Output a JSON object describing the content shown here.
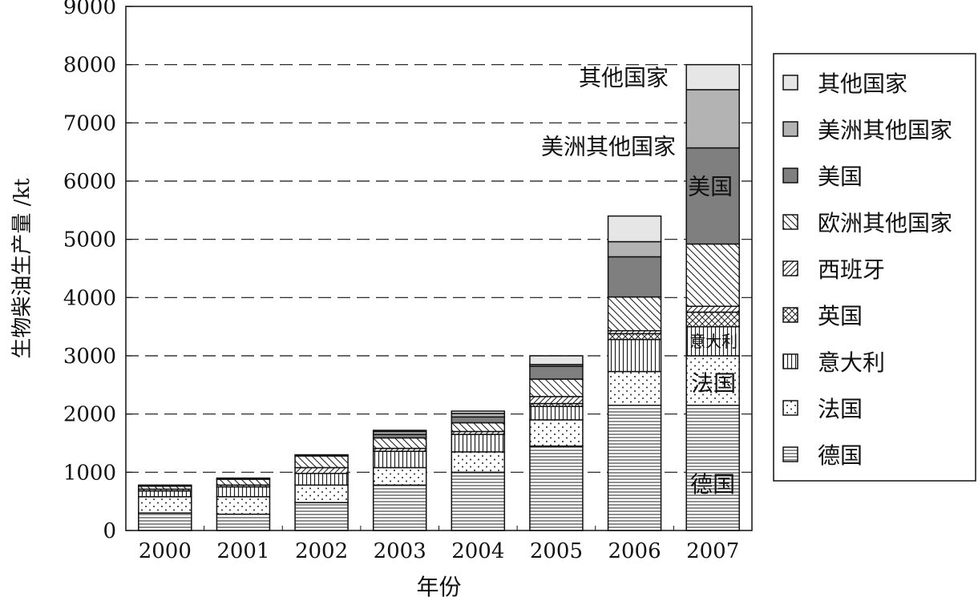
{
  "chart_data": {
    "type": "bar",
    "stacked": true,
    "xlabel": "年份",
    "ylabel": "生物柴油生产量 /kt",
    "ylim": [
      0,
      9000
    ],
    "yticks": [
      0,
      1000,
      2000,
      3000,
      4000,
      5000,
      6000,
      7000,
      8000,
      9000
    ],
    "grid": "horizontal dashed",
    "legend_position": "right",
    "categories": [
      "2000",
      "2001",
      "2002",
      "2003",
      "2004",
      "2005",
      "2006",
      "2007"
    ],
    "series": [
      {
        "name": "德国",
        "pattern": "hlines",
        "values": [
          300,
          280,
          480,
          780,
          1000,
          1450,
          2150,
          2150
        ]
      },
      {
        "name": "法国",
        "pattern": "dots",
        "values": [
          280,
          300,
          300,
          300,
          350,
          450,
          580,
          850
        ]
      },
      {
        "name": "意大利",
        "pattern": "vlines",
        "values": [
          100,
          170,
          200,
          280,
          300,
          230,
          550,
          500
        ]
      },
      {
        "name": "英国",
        "pattern": "cross",
        "values": [
          0,
          0,
          0,
          0,
          0,
          50,
          100,
          250
        ]
      },
      {
        "name": "西班牙",
        "pattern": "diagR",
        "values": [
          30,
          30,
          100,
          50,
          50,
          120,
          50,
          100
        ]
      },
      {
        "name": "欧洲其他国家",
        "pattern": "diagL",
        "values": [
          50,
          100,
          200,
          180,
          150,
          300,
          580,
          1070
        ]
      },
      {
        "name": "美国",
        "pattern": "#7f7f7f",
        "values": [
          0,
          0,
          0,
          60,
          100,
          220,
          690,
          1650
        ]
      },
      {
        "name": "美洲其他国家",
        "pattern": "#b3b3b3",
        "values": [
          0,
          0,
          0,
          50,
          60,
          30,
          260,
          1000
        ]
      },
      {
        "name": "其他国家",
        "pattern": "#e6e6e6",
        "values": [
          20,
          20,
          20,
          20,
          40,
          150,
          440,
          430
        ]
      }
    ],
    "legend_order": [
      "其他国家",
      "美洲其他国家",
      "美国",
      "欧洲其他国家",
      "西班牙",
      "英国",
      "意大利",
      "法国",
      "德国"
    ],
    "annotations": {
      "other": "其他国家",
      "americas": "美洲其他国家",
      "usa": "美国",
      "italy": "意大利",
      "france": "法国",
      "germany": "德国"
    }
  }
}
